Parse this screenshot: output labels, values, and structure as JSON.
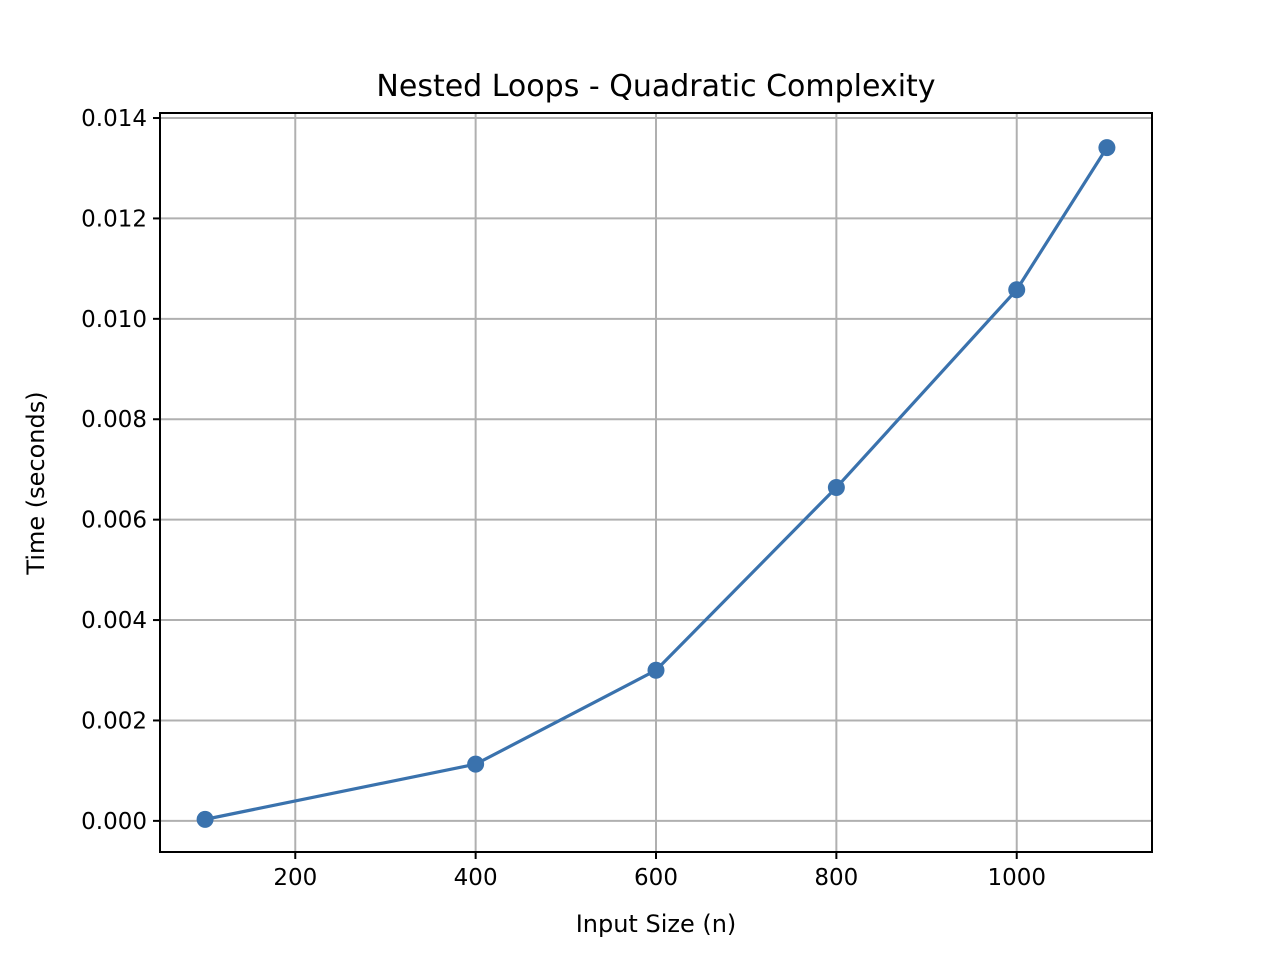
{
  "chart_data": {
    "type": "line",
    "title": "Nested Loops - Quadratic Complexity",
    "xlabel": "Input Size (n)",
    "ylabel": "Time (seconds)",
    "xlim": [
      50,
      1150
    ],
    "ylim": [
      -0.00062,
      0.0141
    ],
    "xticks": [
      200,
      400,
      600,
      800,
      1000
    ],
    "xtick_labels": [
      "200",
      "400",
      "600",
      "800",
      "1000"
    ],
    "yticks": [
      0.0,
      0.002,
      0.004,
      0.006,
      0.008,
      0.01,
      0.012,
      0.014
    ],
    "ytick_labels": [
      "0.000",
      "0.002",
      "0.004",
      "0.006",
      "0.008",
      "0.010",
      "0.012",
      "0.014"
    ],
    "grid": true,
    "series": [
      {
        "color": "#3a72ad",
        "marker": "circle",
        "x": [
          100,
          400,
          600,
          800,
          1000,
          1100
        ],
        "y": [
          3e-05,
          0.00113,
          0.003,
          0.00664,
          0.01058,
          0.01341
        ]
      }
    ]
  }
}
